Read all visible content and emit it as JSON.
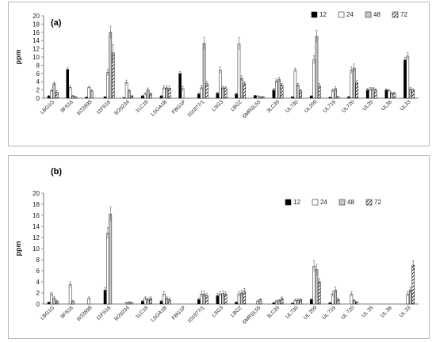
{
  "chart_data": [
    {
      "type": "bar",
      "title": "(a)",
      "ylabel": "ppm",
      "ylim": [
        0,
        20
      ],
      "yticks": [
        0,
        2,
        4,
        6,
        8,
        10,
        12,
        14,
        16,
        18,
        20
      ],
      "legend_position": "top-right",
      "categories": [
        "LBG1G",
        "9FS16",
        "6/23898",
        "11FS16",
        "9/20234",
        "1LC18",
        "LSGA1B",
        "FBG1P",
        "101877/1",
        "LSG3",
        "LBG2",
        "6MRSL55",
        "3LC39",
        "UL730",
        "UL209",
        "UL719",
        "UL720",
        "UL35",
        "UL36",
        "UL33"
      ],
      "series": [
        {
          "name": "12",
          "style": "black",
          "values": [
            0.5,
            7.0,
            0.2,
            0.3,
            0.1,
            0.5,
            0.5,
            6.0,
            1.0,
            1.2,
            1.0,
            0.6,
            2.0,
            0.3,
            0.5,
            0.2,
            0.3,
            2.0,
            2.0,
            9.3
          ]
        },
        {
          "name": "24",
          "style": "white",
          "values": [
            1.8,
            2.6,
            2.6,
            6.2,
            3.8,
            1.0,
            2.5,
            2.3,
            2.5,
            6.8,
            13.2,
            0.5,
            4.2,
            6.8,
            9.3,
            1.8,
            6.8,
            2.2,
            1.8,
            10.2
          ]
        },
        {
          "name": "48",
          "style": "gray",
          "values": [
            3.5,
            0.5,
            1.8,
            16.0,
            1.8,
            2.0,
            2.5,
            0.0,
            13.3,
            2.5,
            4.8,
            0.3,
            4.5,
            3.2,
            15.0,
            2.3,
            7.3,
            2.3,
            1.2,
            2.2
          ]
        },
        {
          "name": "72",
          "style": "hatch",
          "values": [
            1.5,
            0.3,
            0.0,
            11.0,
            0.5,
            1.0,
            2.4,
            0.0,
            3.5,
            2.5,
            3.5,
            0.3,
            3.2,
            1.8,
            3.0,
            0.3,
            3.7,
            2.0,
            1.2,
            2.0
          ]
        }
      ],
      "errors": [
        [
          0.2,
          0.5,
          0.1,
          0.1,
          0.1,
          0.2,
          0.2,
          0.5,
          0.2,
          0.2,
          0.2,
          0.1,
          0.4,
          0.1,
          0.1,
          0.1,
          0.1,
          0.4,
          0.3,
          0.6
        ],
        [
          0.3,
          0.5,
          0.3,
          0.8,
          0.6,
          0.3,
          0.5,
          0.5,
          0.5,
          0.8,
          1.5,
          0.1,
          0.5,
          0.5,
          1.0,
          0.4,
          0.8,
          0.4,
          0.3,
          0.8
        ],
        [
          0.5,
          0.2,
          0.3,
          1.5,
          0.3,
          0.5,
          0.5,
          0.0,
          1.5,
          0.4,
          0.6,
          0.1,
          0.6,
          0.4,
          1.4,
          0.5,
          1.0,
          0.3,
          0.3,
          0.4
        ],
        [
          0.3,
          0.1,
          0.0,
          2.0,
          0.2,
          0.2,
          0.5,
          0.0,
          0.6,
          0.3,
          0.5,
          0.1,
          0.4,
          0.3,
          0.6,
          0.1,
          0.6,
          0.3,
          0.2,
          0.3
        ]
      ]
    },
    {
      "type": "bar",
      "title": "(b)",
      "ylabel": "ppm",
      "ylim": [
        0,
        20
      ],
      "yticks": [
        0,
        2,
        4,
        6,
        8,
        10,
        12,
        14,
        16,
        18,
        20
      ],
      "legend_position": "top-right",
      "categories": [
        "LBG1G",
        "9FS16",
        "6/23898",
        "11FS16",
        "9/20234",
        "1LC18",
        "LSGA1B",
        "FBG1P",
        "101877/1",
        "LSG3",
        "LBG2",
        "6MRSL55",
        "3LC39",
        "UL730",
        "UL 209",
        "UL 719",
        "UL 720",
        "UL 35",
        "UL 36",
        "UL 33"
      ],
      "series": [
        {
          "name": "12",
          "style": "black",
          "values": [
            0.3,
            0.0,
            0.0,
            2.5,
            0.0,
            0.5,
            0.5,
            0.0,
            0.8,
            1.5,
            0.3,
            0.0,
            0.2,
            0.1,
            0.8,
            0.2,
            0.0,
            0.0,
            0.0,
            0.0
          ]
        },
        {
          "name": "24",
          "style": "white",
          "values": [
            1.8,
            3.5,
            1.0,
            12.8,
            0.2,
            1.0,
            1.8,
            0.0,
            1.8,
            1.8,
            1.8,
            0.5,
            0.5,
            0.7,
            6.8,
            1.8,
            1.8,
            0.0,
            0.0,
            1.8
          ]
        },
        {
          "name": "48",
          "style": "gray",
          "values": [
            1.0,
            0.5,
            0.0,
            16.2,
            0.3,
            0.8,
            1.0,
            0.0,
            1.8,
            1.9,
            2.0,
            0.8,
            0.6,
            0.7,
            6.2,
            2.5,
            0.6,
            0.0,
            0.0,
            2.5
          ]
        },
        {
          "name": "72",
          "style": "hatch",
          "values": [
            0.5,
            0.0,
            0.0,
            0.0,
            0.2,
            1.0,
            0.8,
            0.0,
            1.5,
            1.8,
            2.3,
            0.0,
            1.0,
            0.8,
            4.0,
            0.8,
            0.3,
            0.0,
            0.0,
            7.0
          ]
        }
      ],
      "errors": [
        [
          0.1,
          0.0,
          0.0,
          0.5,
          0.0,
          0.2,
          0.2,
          0.0,
          0.3,
          0.4,
          0.1,
          0.0,
          0.1,
          0.1,
          0.2,
          0.1,
          0.0,
          0.0,
          0.0,
          0.0
        ],
        [
          0.3,
          0.5,
          0.3,
          1.0,
          0.1,
          0.3,
          0.4,
          0.0,
          0.5,
          0.4,
          0.4,
          0.2,
          0.2,
          0.2,
          1.0,
          0.4,
          0.4,
          0.0,
          0.0,
          0.4
        ],
        [
          0.3,
          0.2,
          0.0,
          1.3,
          0.1,
          0.3,
          0.3,
          0.0,
          0.5,
          0.4,
          0.5,
          0.2,
          0.2,
          0.2,
          1.0,
          0.6,
          0.2,
          0.0,
          0.0,
          0.5
        ],
        [
          0.2,
          0.0,
          0.0,
          0.0,
          0.1,
          0.3,
          0.3,
          0.0,
          0.4,
          0.4,
          0.5,
          0.0,
          0.3,
          0.2,
          0.6,
          0.3,
          0.1,
          0.0,
          0.0,
          0.8
        ]
      ]
    }
  ]
}
